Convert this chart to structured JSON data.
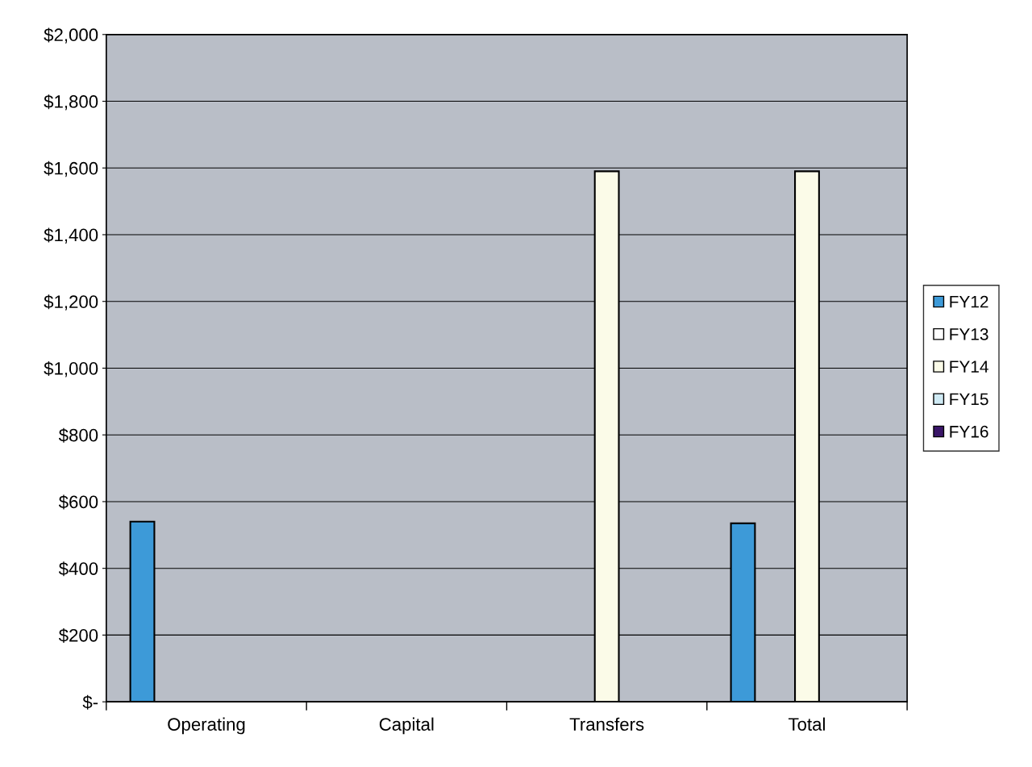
{
  "chart_data": {
    "type": "bar",
    "categories": [
      "Operating",
      "Capital",
      "Transfers",
      "Total"
    ],
    "series": [
      {
        "name": "FY12",
        "color": "#3d9ad8",
        "values": [
          540,
          null,
          null,
          535
        ]
      },
      {
        "name": "FY13",
        "color": "#ffffff",
        "values": [
          null,
          null,
          null,
          null
        ]
      },
      {
        "name": "FY14",
        "color": "#fbfbe8",
        "values": [
          null,
          null,
          1590,
          1590
        ]
      },
      {
        "name": "FY15",
        "color": "#cfeaf4",
        "values": [
          null,
          null,
          null,
          null
        ]
      },
      {
        "name": "FY16",
        "color": "#3a1668",
        "values": [
          null,
          null,
          null,
          null
        ]
      }
    ],
    "ylim": [
      0,
      2000
    ],
    "yticks": [
      {
        "value": 0,
        "label": "$-"
      },
      {
        "value": 200,
        "label": "$200"
      },
      {
        "value": 400,
        "label": "$400"
      },
      {
        "value": 600,
        "label": "$600"
      },
      {
        "value": 800,
        "label": "$800"
      },
      {
        "value": 1000,
        "label": "$1,000"
      },
      {
        "value": 1200,
        "label": "$1,200"
      },
      {
        "value": 1400,
        "label": "$1,400"
      },
      {
        "value": 1600,
        "label": "$1,600"
      },
      {
        "value": 1800,
        "label": "$1,800"
      },
      {
        "value": 2000,
        "label": "$2,000"
      }
    ],
    "grid": "y",
    "legend": "right"
  }
}
